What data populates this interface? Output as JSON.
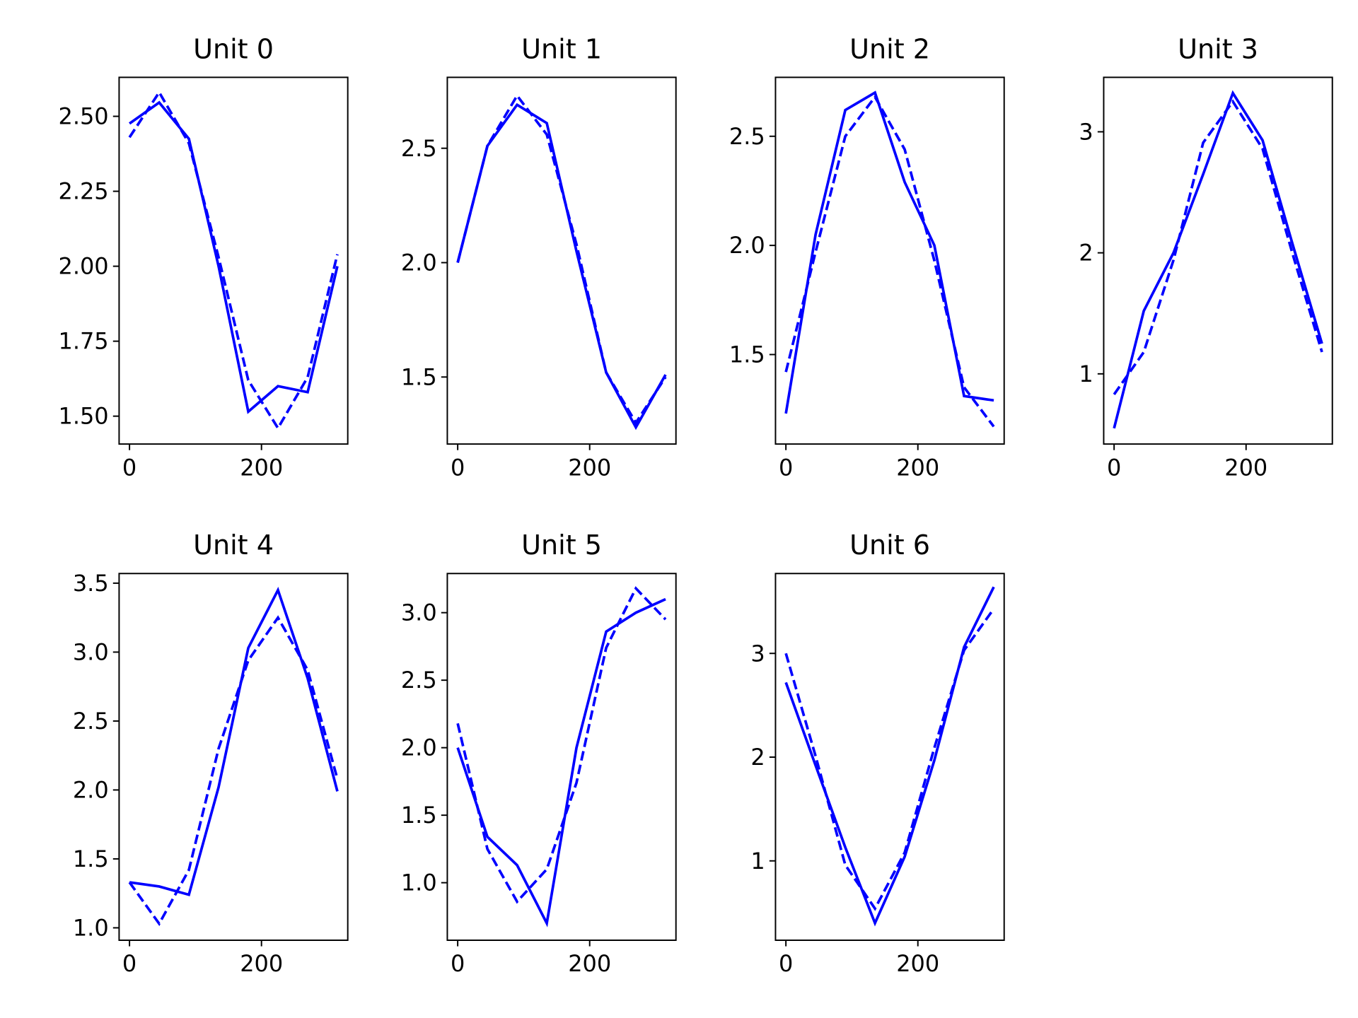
{
  "chart_data": [
    {
      "type": "line",
      "title": "Unit 0",
      "x": [
        0,
        45,
        90,
        135,
        180,
        225,
        270,
        315
      ],
      "xlim": [
        -15.75,
        330.75
      ],
      "xticks": [
        0,
        200
      ],
      "ylim": [
        1.407,
        2.63
      ],
      "yticks": [
        {
          "value": 1.5,
          "label": "1.50"
        },
        1.75,
        {
          "value": 2,
          "label": "2.00"
        },
        2.25,
        {
          "value": 2.5,
          "label": "2.50"
        }
      ],
      "series": [
        {
          "color": "#0000ff",
          "linestyle": "solid",
          "values": [
            2.476,
            2.546,
            2.425,
            2.0,
            1.515,
            1.6,
            1.58,
            2.0
          ]
        },
        {
          "color": "#0000ff",
          "linestyle": "dashed",
          "values": [
            2.43,
            2.58,
            2.41,
            2.03,
            1.62,
            1.46,
            1.63,
            2.04
          ]
        }
      ]
    },
    {
      "type": "line",
      "title": "Unit 1",
      "x": [
        0,
        45,
        90,
        135,
        180,
        225,
        270,
        315
      ],
      "xlim": [
        -15.75,
        330.75
      ],
      "xticks": [
        0,
        200
      ],
      "ylim": [
        1.207,
        2.81
      ],
      "yticks": [
        1.5,
        {
          "value": 2,
          "label": "2.0"
        },
        2.5
      ],
      "series": [
        {
          "color": "#0000ff",
          "linestyle": "solid",
          "values": [
            2.0,
            2.51,
            2.69,
            2.61,
            2.05,
            1.52,
            1.28,
            1.51
          ]
        },
        {
          "color": "#0000ff",
          "linestyle": "dashed",
          "values": [
            2.0,
            2.51,
            2.73,
            2.56,
            2.08,
            1.52,
            1.3,
            1.5
          ]
        }
      ]
    },
    {
      "type": "line",
      "title": "Unit 2",
      "x": [
        0,
        45,
        90,
        135,
        180,
        225,
        270,
        315
      ],
      "xlim": [
        -15.75,
        330.75
      ],
      "xticks": [
        0,
        200
      ],
      "ylim": [
        1.09,
        2.77
      ],
      "yticks": [
        1.5,
        {
          "value": 2,
          "label": "2.0"
        },
        2.5
      ],
      "series": [
        {
          "color": "#0000ff",
          "linestyle": "solid",
          "values": [
            1.23,
            2.05,
            2.62,
            2.7,
            2.29,
            2.0,
            1.31,
            1.29
          ]
        },
        {
          "color": "#0000ff",
          "linestyle": "dashed",
          "values": [
            1.42,
            1.97,
            2.5,
            2.68,
            2.44,
            1.93,
            1.35,
            1.17
          ]
        }
      ]
    },
    {
      "type": "line",
      "title": "Unit 3",
      "x": [
        0,
        45,
        90,
        135,
        180,
        225,
        270,
        315
      ],
      "xlim": [
        -15.75,
        330.75
      ],
      "xticks": [
        0,
        200
      ],
      "ylim": [
        0.42,
        3.45
      ],
      "yticks": [
        1,
        2,
        3
      ],
      "series": [
        {
          "color": "#0000ff",
          "linestyle": "solid",
          "values": [
            0.55,
            1.52,
            2.0,
            2.65,
            3.32,
            2.93,
            2.08,
            1.25
          ]
        },
        {
          "color": "#0000ff",
          "linestyle": "dashed",
          "values": [
            0.83,
            1.18,
            1.94,
            2.91,
            3.25,
            2.86,
            2.0,
            1.18
          ]
        }
      ]
    },
    {
      "type": "line",
      "title": "Unit 4",
      "x": [
        0,
        45,
        90,
        135,
        180,
        225,
        270,
        315
      ],
      "xlim": [
        -15.75,
        330.75
      ],
      "xticks": [
        0,
        200
      ],
      "ylim": [
        0.91,
        3.57
      ],
      "yticks": [
        {
          "value": 1,
          "label": "1.0"
        },
        1.5,
        {
          "value": 2,
          "label": "2.0"
        },
        2.5,
        {
          "value": 3,
          "label": "3.0"
        },
        3.5
      ],
      "series": [
        {
          "color": "#0000ff",
          "linestyle": "solid",
          "values": [
            1.33,
            1.3,
            1.24,
            2.02,
            3.03,
            3.45,
            2.81,
            1.99
          ]
        },
        {
          "color": "#0000ff",
          "linestyle": "dashed",
          "values": [
            1.33,
            1.03,
            1.42,
            2.3,
            2.94,
            3.25,
            2.87,
            2.08
          ]
        }
      ]
    },
    {
      "type": "line",
      "title": "Unit 5",
      "x": [
        0,
        45,
        90,
        135,
        180,
        225,
        270,
        315
      ],
      "xlim": [
        -15.75,
        330.75
      ],
      "xticks": [
        0,
        200
      ],
      "ylim": [
        0.574,
        3.29
      ],
      "yticks": [
        {
          "value": 1,
          "label": "1.0"
        },
        1.5,
        {
          "value": 2,
          "label": "2.0"
        },
        2.5,
        {
          "value": 3,
          "label": "3.0"
        }
      ],
      "series": [
        {
          "color": "#0000ff",
          "linestyle": "solid",
          "values": [
            2.0,
            1.34,
            1.13,
            0.7,
            2.0,
            2.86,
            3.0,
            3.1
          ]
        },
        {
          "color": "#0000ff",
          "linestyle": "dashed",
          "values": [
            2.18,
            1.25,
            0.86,
            1.1,
            1.74,
            2.74,
            3.18,
            2.95
          ]
        }
      ]
    },
    {
      "type": "line",
      "title": "Unit 6",
      "x": [
        0,
        45,
        90,
        135,
        180,
        225,
        270,
        315
      ],
      "xlim": [
        -15.75,
        330.75
      ],
      "xticks": [
        0,
        200
      ],
      "ylim": [
        0.235,
        3.77
      ],
      "yticks": [
        1,
        2,
        3
      ],
      "series": [
        {
          "color": "#0000ff",
          "linestyle": "solid",
          "values": [
            2.72,
            1.92,
            1.13,
            0.4,
            1.04,
            1.97,
            3.06,
            3.64
          ]
        },
        {
          "color": "#0000ff",
          "linestyle": "dashed",
          "values": [
            3.0,
            2.01,
            0.96,
            0.54,
            1.08,
            2.09,
            3.03,
            3.43
          ]
        }
      ]
    }
  ]
}
